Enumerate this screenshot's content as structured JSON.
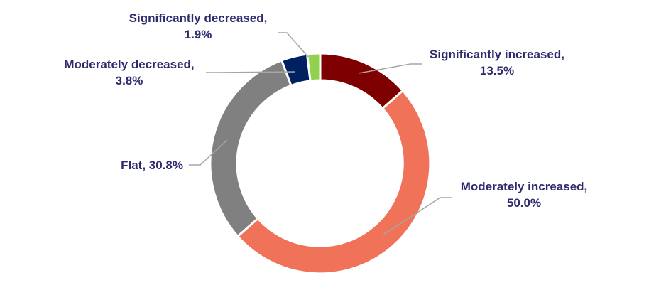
{
  "chart_data": {
    "type": "pie",
    "subtype": "doughnut",
    "title": "",
    "legend": "none",
    "slices": [
      {
        "label": "Significantly increased",
        "value": 13.5,
        "value_label": "13.5%",
        "color": "#7f0000"
      },
      {
        "label": "Moderately increased",
        "value": 50.0,
        "value_label": "50.0%",
        "color": "#f07259"
      },
      {
        "label": "Flat",
        "value": 30.8,
        "value_label": "30.8%",
        "color": "#808080"
      },
      {
        "label": "Moderately decreased",
        "value": 3.8,
        "value_label": "3.8%",
        "color": "#002060"
      },
      {
        "label": "Significantly decreased",
        "value": 1.9,
        "value_label": "1.9%",
        "color": "#92d050"
      }
    ]
  },
  "colors": {
    "label_text": "#2e2a6e",
    "leader_line": "#a6a6a6",
    "slice_border": "#ffffff"
  }
}
